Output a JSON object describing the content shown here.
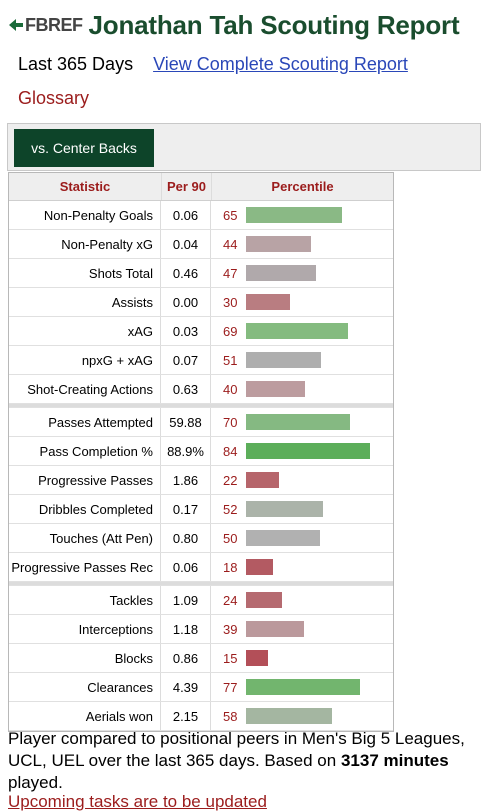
{
  "header": {
    "logo_text": "FBREF",
    "title": "Jonathan Tah Scouting Report"
  },
  "subheader": {
    "period": "Last 365 Days",
    "full_report_link": "View Complete Scouting Report",
    "glossary_link": "Glossary"
  },
  "filter": {
    "button_label": "vs. Center Backs"
  },
  "table": {
    "headers": [
      "Statistic",
      "Per 90",
      "Percentile"
    ],
    "groups": [
      [
        {
          "stat": "Non-Penalty Goals",
          "per90": "0.06",
          "pct": 65,
          "color": "#8ab985"
        },
        {
          "stat": "Non-Penalty xG",
          "per90": "0.04",
          "pct": 44,
          "color": "#b8a3a5"
        },
        {
          "stat": "Shots Total",
          "per90": "0.46",
          "pct": 47,
          "color": "#b0a9ab"
        },
        {
          "stat": "Assists",
          "per90": "0.00",
          "pct": 30,
          "color": "#b97d81"
        },
        {
          "stat": "xAG",
          "per90": "0.03",
          "pct": 69,
          "color": "#84bb7f"
        },
        {
          "stat": "npxG + xAG",
          "per90": "0.07",
          "pct": 51,
          "color": "#aeaeae"
        },
        {
          "stat": "Shot-Creating Actions",
          "per90": "0.63",
          "pct": 40,
          "color": "#bc9c9f"
        }
      ],
      [
        {
          "stat": "Passes Attempted",
          "per90": "59.88",
          "pct": 70,
          "color": "#85b982"
        },
        {
          "stat": "Pass Completion %",
          "per90": "88.9%",
          "pct": 84,
          "color": "#5cae5a"
        },
        {
          "stat": "Progressive Passes",
          "per90": "1.86",
          "pct": 22,
          "color": "#b6656b"
        },
        {
          "stat": "Dribbles Completed",
          "per90": "0.17",
          "pct": 52,
          "color": "#abb3a9"
        },
        {
          "stat": "Touches (Att Pen)",
          "per90": "0.80",
          "pct": 50,
          "color": "#b1b1b1"
        },
        {
          "stat": "Progressive Passes Rec",
          "per90": "0.06",
          "pct": 18,
          "color": "#b35a62"
        }
      ],
      [
        {
          "stat": "Tackles",
          "per90": "1.09",
          "pct": 24,
          "color": "#b56a70"
        },
        {
          "stat": "Interceptions",
          "per90": "1.18",
          "pct": 39,
          "color": "#bb999c"
        },
        {
          "stat": "Blocks",
          "per90": "0.86",
          "pct": 15,
          "color": "#b34f58"
        },
        {
          "stat": "Clearances",
          "per90": "4.39",
          "pct": 77,
          "color": "#72b56e"
        },
        {
          "stat": "Aerials won",
          "per90": "2.15",
          "pct": 58,
          "color": "#a4b6a1"
        }
      ]
    ]
  },
  "footnote": {
    "text_before": "Player compared to positional peers in Men's Big 5 Leagues, UCL, UEL over the last 365 days. Based on ",
    "minutes": "3137 minutes",
    "text_after": " played.",
    "cutoff_link": "Upcoming tasks are to be updated"
  }
}
